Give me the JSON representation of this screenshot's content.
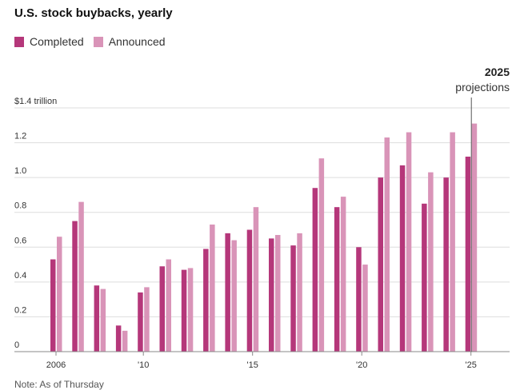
{
  "title": "U.S. stock buybacks, yearly",
  "note": "Note: As of Thursday",
  "colors": {
    "completed": "#b5377a",
    "announced": "#d994b8",
    "grid": "#dddddd",
    "axis": "#888888"
  },
  "chart_data": {
    "type": "bar",
    "title": "U.S. stock buybacks, yearly",
    "x": [
      2006,
      2007,
      2008,
      2009,
      2010,
      2011,
      2012,
      2013,
      2014,
      2015,
      2016,
      2017,
      2018,
      2019,
      2020,
      2021,
      2022,
      2023,
      2024,
      2025
    ],
    "x_tick_labels": [
      {
        "year": 2006,
        "label": "2006"
      },
      {
        "year": 2010,
        "label": "'10"
      },
      {
        "year": 2015,
        "label": "'15"
      },
      {
        "year": 2020,
        "label": "'20"
      },
      {
        "year": 2025,
        "label": "'25"
      }
    ],
    "y_tick_labels": [
      {
        "value": 0,
        "label": "0"
      },
      {
        "value": 0.2,
        "label": "0.2"
      },
      {
        "value": 0.4,
        "label": "0.4"
      },
      {
        "value": 0.6,
        "label": "0.6"
      },
      {
        "value": 0.8,
        "label": "0.8"
      },
      {
        "value": 1.0,
        "label": "1.0"
      },
      {
        "value": 1.2,
        "label": "1.2"
      },
      {
        "value": 1.4,
        "label": "$1.4 trillion"
      }
    ],
    "ylim": [
      0,
      1.4
    ],
    "grid": true,
    "legend": "top-left",
    "series": [
      {
        "name": "Completed",
        "values": [
          0.53,
          0.75,
          0.38,
          0.15,
          0.34,
          0.49,
          0.47,
          0.59,
          0.68,
          0.7,
          0.65,
          0.61,
          0.94,
          0.83,
          0.6,
          1.0,
          1.07,
          0.85,
          1.0,
          1.12
        ]
      },
      {
        "name": "Announced",
        "values": [
          0.66,
          0.86,
          0.36,
          0.12,
          0.37,
          0.53,
          0.48,
          0.73,
          0.64,
          0.83,
          0.67,
          0.68,
          1.11,
          0.89,
          0.5,
          1.23,
          1.26,
          1.03,
          1.26,
          1.31
        ]
      }
    ],
    "annotation": {
      "year": 2025,
      "title": "2025",
      "subtitle": "projections"
    }
  }
}
